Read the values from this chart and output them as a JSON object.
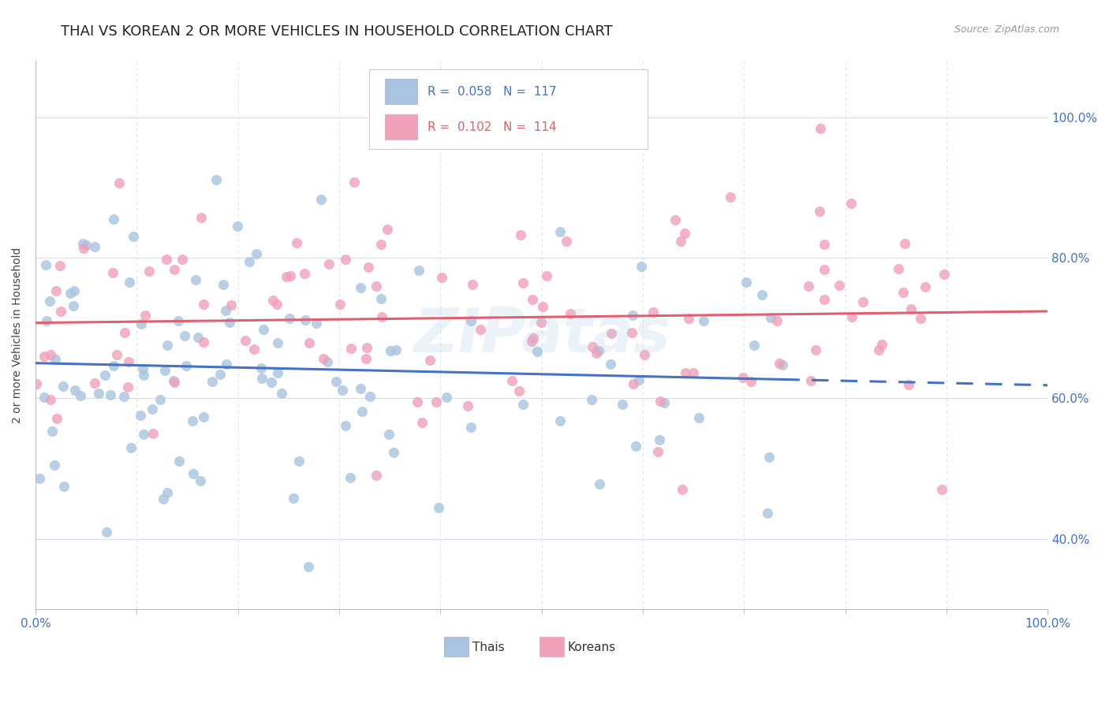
{
  "title": "THAI VS KOREAN 2 OR MORE VEHICLES IN HOUSEHOLD CORRELATION CHART",
  "source": "Source: ZipAtlas.com",
  "ylabel": "2 or more Vehicles in Household",
  "xlim": [
    0.0,
    1.0
  ],
  "ylim": [
    0.3,
    1.08
  ],
  "thai_r": 0.058,
  "thai_n": 117,
  "korean_r": 0.102,
  "korean_n": 114,
  "thai_color": "#a8c4e0",
  "korean_color": "#f0a0b8",
  "thai_line_color": "#4472c4",
  "korean_line_color": "#e06070",
  "background_color": "#ffffff",
  "grid_color": "#d8e0ee",
  "title_fontsize": 13,
  "axis_color": "#4472c4",
  "label_fontsize": 10,
  "legend_r_thai": "R =  0.058",
  "legend_n_thai": "N =  117",
  "legend_r_korean": "R =  0.102",
  "legend_n_korean": "N =  114",
  "watermark": "ZIPatas"
}
